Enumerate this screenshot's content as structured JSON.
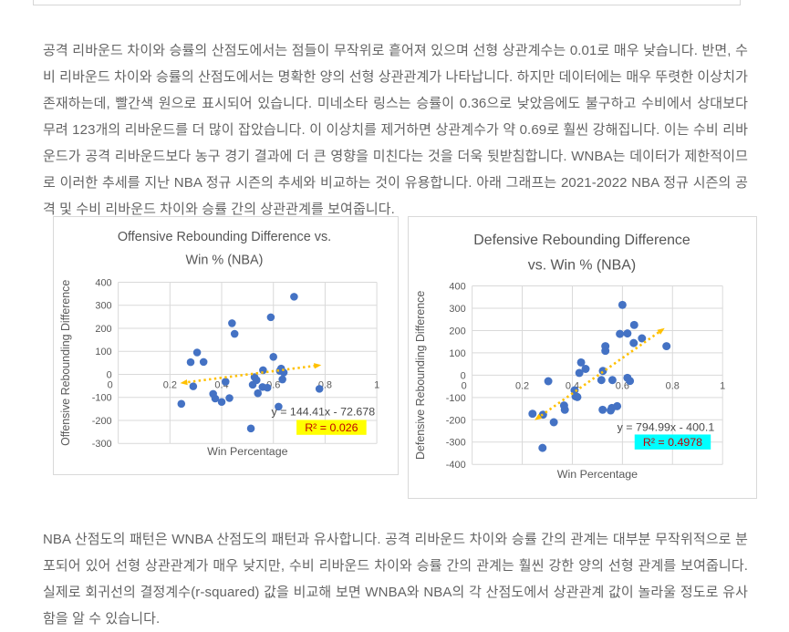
{
  "page": {
    "paragraph_top": "공격 리바운드 차이와 승률의 산점도에서는 점들이 무작위로 흩어져 있으며 선형 상관계수는 0.01로 매우 낮습니다. 반면, 수비 리바운드 차이와 승률의 산점도에서는 명확한 양의 선형 상관관계가 나타납니다. 하지만 데이터에는 매우 뚜렷한 이상치가 존재하는데, 빨간색 원으로 표시되어 있습니다. 미네소타 링스는 승률이 0.36으로 낮았음에도 불구하고 수비에서 상대보다 무려 123개의 리바운드를 더 많이 잡았습니다. 이 이상치를 제거하면 상관계수가 약 0.69로 훨씬 강해집니다. 이는 수비 리바운드가 공격 리바운드보다 농구 경기 결과에 더 큰 영향을 미친다는 것을 더욱 뒷받침합니다. WNBA는 데이터가 제한적이므로 이러한 추세를 지난 NBA 정규 시즌의 추세와 비교하는 것이 유용합니다. 아래 그래프는 2021-2022 NBA 정규 시즌의 공격 및 수비 리바운드 차이와 승률 간의 상관관계를 보여줍니다.",
    "paragraph_bottom": "NBA 산점도의 패턴은 WNBA 산점도의 패턴과 유사합니다. 공격 리바운드 차이와 승률 간의 관계는 대부분 무작위적으로 분포되어 있어 선형 상관관계가 매우 낮지만, 수비 리바운드 차이와 승률 간의 관계는 훨씬 강한 양의 선형 관계를 보여줍니다. 실제로 회귀선의 결정계수(r-squared) 값을 비교해 보면 WNBA와 NBA의 각 산점도에서 상관관계 값이 놀라울 정도로 유사함을 알 수 있습니다."
  },
  "chart_data": [
    {
      "type": "scatter",
      "title": "Offensive Rebounding Difference vs. Win % (NBA)",
      "title_lines": [
        "Offensive Rebounding Difference vs.",
        "Win % (NBA)"
      ],
      "xlabel": "Win Percentage",
      "ylabel": "Offensive Rebounding Difference",
      "xlim": [
        0,
        1
      ],
      "ylim": [
        -300,
        400
      ],
      "xticks": [
        0,
        0.2,
        0.4,
        0.6,
        0.8,
        1
      ],
      "yticks": [
        400,
        300,
        200,
        100,
        0,
        -100,
        -200,
        -300
      ],
      "grid": true,
      "point_color": "#4472C4",
      "trend_color": "#FFC000",
      "points": [
        [
          0.68,
          337
        ],
        [
          0.59,
          248
        ],
        [
          0.44,
          222
        ],
        [
          0.45,
          176
        ],
        [
          0.305,
          95
        ],
        [
          0.6,
          76
        ],
        [
          0.28,
          53
        ],
        [
          0.33,
          54
        ],
        [
          0.63,
          25
        ],
        [
          0.56,
          18
        ],
        [
          0.625,
          15
        ],
        [
          0.64,
          8
        ],
        [
          0.527,
          -12
        ],
        [
          0.535,
          -25
        ],
        [
          0.415,
          -32
        ],
        [
          0.635,
          -22
        ],
        [
          0.29,
          -52
        ],
        [
          0.52,
          -45
        ],
        [
          0.558,
          -55
        ],
        [
          0.577,
          -58
        ],
        [
          0.367,
          -85
        ],
        [
          0.54,
          -82
        ],
        [
          0.778,
          -63
        ],
        [
          0.375,
          -105
        ],
        [
          0.43,
          -103
        ],
        [
          0.4,
          -120
        ],
        [
          0.244,
          -128
        ],
        [
          0.62,
          -140
        ],
        [
          0.513,
          -235
        ]
      ],
      "trendline": {
        "slope": 144.41,
        "intercept": -72.678,
        "x_start": 0.25,
        "x_end": 0.775,
        "equation": "y = 144.41x - 72.678",
        "r2": "R² = 0.026",
        "r2_bg": "#FFFF00",
        "r2_text_color": "#C00000"
      }
    },
    {
      "type": "scatter",
      "title": "Defensive Rebounding Difference vs. Win % (NBA)",
      "title_lines": [
        "Defensive Rebounding Difference",
        "vs. Win % (NBA)"
      ],
      "xlabel": "Win Percentage",
      "ylabel": "Defensive Rebounding  Difference",
      "xlim": [
        0,
        1
      ],
      "ylim": [
        -400,
        400
      ],
      "xticks": [
        0,
        0.2,
        0.4,
        0.6,
        0.8,
        1
      ],
      "yticks": [
        400,
        300,
        200,
        100,
        0,
        -100,
        -200,
        -300,
        -400
      ],
      "grid": true,
      "point_color": "#4472C4",
      "trend_color": "#FFC000",
      "points": [
        [
          0.6,
          315
        ],
        [
          0.647,
          225
        ],
        [
          0.62,
          187
        ],
        [
          0.59,
          185
        ],
        [
          0.678,
          165
        ],
        [
          0.645,
          144
        ],
        [
          0.776,
          130
        ],
        [
          0.532,
          130
        ],
        [
          0.532,
          109
        ],
        [
          0.435,
          57
        ],
        [
          0.453,
          28
        ],
        [
          0.522,
          19
        ],
        [
          0.428,
          10
        ],
        [
          0.62,
          -12
        ],
        [
          0.516,
          -22
        ],
        [
          0.56,
          -22
        ],
        [
          0.63,
          -26
        ],
        [
          0.304,
          -27
        ],
        [
          0.409,
          -68
        ],
        [
          0.413,
          -95
        ],
        [
          0.42,
          -98
        ],
        [
          0.367,
          -136
        ],
        [
          0.37,
          -155
        ],
        [
          0.521,
          -155
        ],
        [
          0.558,
          -147
        ],
        [
          0.579,
          -139
        ],
        [
          0.553,
          -158
        ],
        [
          0.241,
          -173
        ],
        [
          0.283,
          -177
        ],
        [
          0.326,
          -211
        ],
        [
          0.281,
          -326
        ]
      ],
      "trendline": {
        "slope": 794.99,
        "intercept": -400.1,
        "x_start": 0.258,
        "x_end": 0.76,
        "equation": "y = 794.99x - 400.1",
        "r2": "R² = 0.4978",
        "r2_bg": "#00FFFF",
        "r2_text_color": "#C00000"
      }
    }
  ],
  "colors": {
    "body_text": "#646464",
    "chart_text": "#595959",
    "gridline": "#d9d9d9",
    "point_blue": "#4472C4",
    "trend_orange": "#FFC000"
  }
}
